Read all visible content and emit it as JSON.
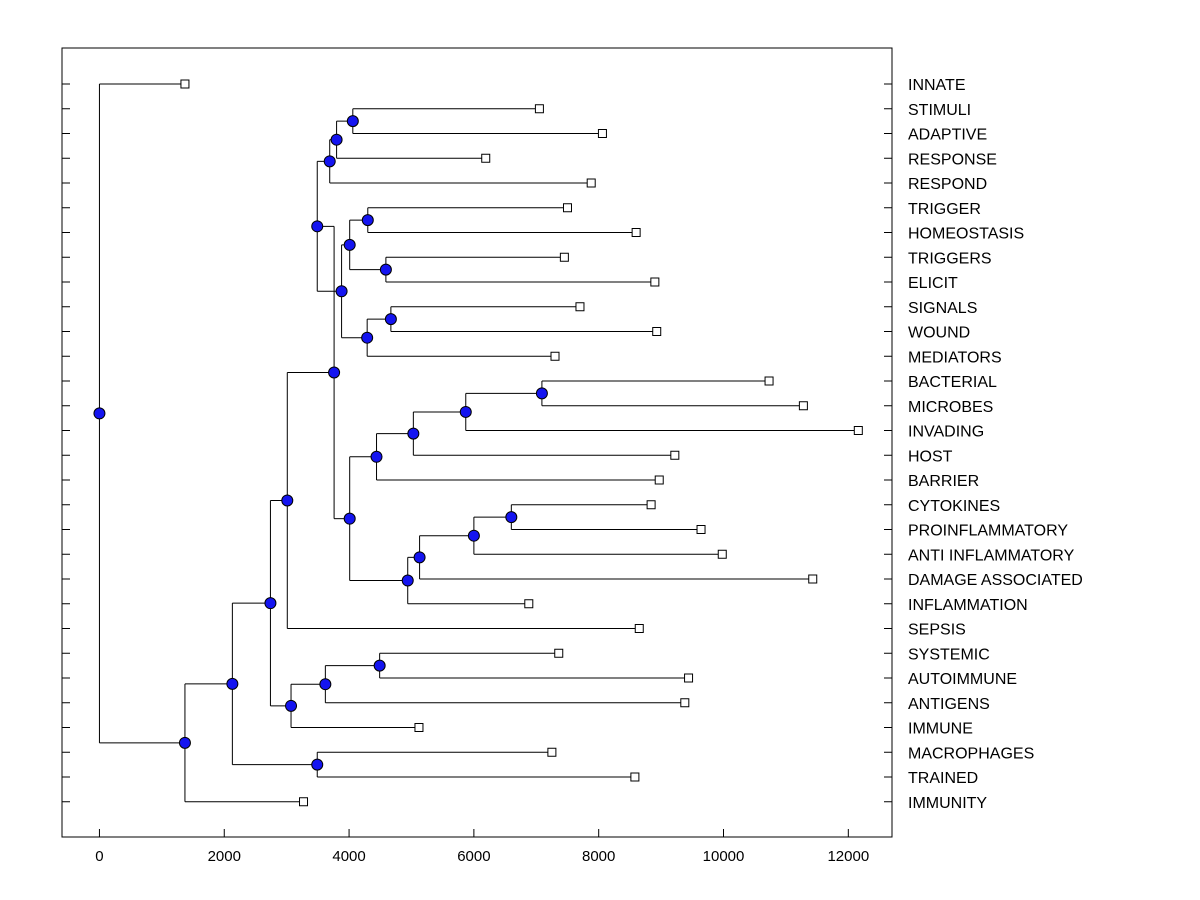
{
  "chart_data": {
    "type": "dendrogram",
    "title": "",
    "xlabel": "",
    "ylabel": "",
    "xlim": [
      -600,
      12700
    ],
    "xticks": [
      0,
      2000,
      4000,
      6000,
      8000,
      10000,
      12000
    ],
    "xtick_labels": [
      "0",
      "2000",
      "4000",
      "6000",
      "8000",
      "10000",
      "12000"
    ],
    "leaves": [
      {
        "label": "INNATE",
        "x": 1370
      },
      {
        "label": "STIMULI",
        "x": 7050
      },
      {
        "label": "ADAPTIVE",
        "x": 8060
      },
      {
        "label": "RESPONSE",
        "x": 6190
      },
      {
        "label": "RESPOND",
        "x": 7880
      },
      {
        "label": "TRIGGER",
        "x": 7500
      },
      {
        "label": "HOMEOSTASIS",
        "x": 8600
      },
      {
        "label": "TRIGGERS",
        "x": 7450
      },
      {
        "label": "ELICIT",
        "x": 8900
      },
      {
        "label": "SIGNALS",
        "x": 7700
      },
      {
        "label": "WOUND",
        "x": 8930
      },
      {
        "label": "MEDIATORS",
        "x": 7300
      },
      {
        "label": "BACTERIAL",
        "x": 10730
      },
      {
        "label": "MICROBES",
        "x": 11280
      },
      {
        "label": "INVADING",
        "x": 12160
      },
      {
        "label": "HOST",
        "x": 9220
      },
      {
        "label": "BARRIER",
        "x": 8970
      },
      {
        "label": "CYTOKINES",
        "x": 8840
      },
      {
        "label": "PROINFLAMMATORY",
        "x": 9640
      },
      {
        "label": "ANTI INFLAMMATORY",
        "x": 9980
      },
      {
        "label": "DAMAGE ASSOCIATED",
        "x": 11430
      },
      {
        "label": "INFLAMMATION",
        "x": 6880
      },
      {
        "label": "SEPSIS",
        "x": 8650
      },
      {
        "label": "SYSTEMIC",
        "x": 7360
      },
      {
        "label": "AUTOIMMUNE",
        "x": 9440
      },
      {
        "label": "ANTIGENS",
        "x": 9380
      },
      {
        "label": "IMMUNE",
        "x": 5120
      },
      {
        "label": "MACROPHAGES",
        "x": 7250
      },
      {
        "label": "TRAINED",
        "x": 8580
      },
      {
        "label": "IMMUNITY",
        "x": 3270
      }
    ],
    "merges": [
      {
        "id": "m1",
        "x": 4060,
        "children": [
          "L1",
          "L2"
        ]
      },
      {
        "id": "m2",
        "x": 3800,
        "children": [
          "m1",
          "L3"
        ]
      },
      {
        "id": "m3",
        "x": 3690,
        "children": [
          "m2",
          "L4"
        ]
      },
      {
        "id": "m4",
        "x": 4300,
        "children": [
          "L5",
          "L6"
        ]
      },
      {
        "id": "m5",
        "x": 4590,
        "children": [
          "L7",
          "L8"
        ]
      },
      {
        "id": "m6",
        "x": 4010,
        "children": [
          "m4",
          "m5"
        ]
      },
      {
        "id": "m7",
        "x": 4670,
        "children": [
          "L9",
          "L10"
        ]
      },
      {
        "id": "m8",
        "x": 4290,
        "children": [
          "m7",
          "L11"
        ]
      },
      {
        "id": "m9",
        "x": 3880,
        "children": [
          "m6",
          "m8"
        ]
      },
      {
        "id": "m10",
        "x": 3490,
        "children": [
          "m3",
          "m9"
        ]
      },
      {
        "id": "m11",
        "x": 7090,
        "children": [
          "L12",
          "L13"
        ]
      },
      {
        "id": "m12",
        "x": 5870,
        "children": [
          "m11",
          "L14"
        ]
      },
      {
        "id": "m13",
        "x": 5030,
        "children": [
          "m12",
          "L15"
        ]
      },
      {
        "id": "m14",
        "x": 4440,
        "children": [
          "m13",
          "L16"
        ]
      },
      {
        "id": "m15",
        "x": 6600,
        "children": [
          "L17",
          "L18"
        ]
      },
      {
        "id": "m16",
        "x": 6000,
        "children": [
          "m15",
          "L19"
        ]
      },
      {
        "id": "m17",
        "x": 5130,
        "children": [
          "m16",
          "L20"
        ]
      },
      {
        "id": "m18",
        "x": 4940,
        "children": [
          "m17",
          "L21"
        ]
      },
      {
        "id": "m19",
        "x": 4010,
        "children": [
          "m14",
          "m18"
        ]
      },
      {
        "id": "m20",
        "x": 3760,
        "children": [
          "m10",
          "m19"
        ]
      },
      {
        "id": "m21",
        "x": 3010,
        "children": [
          "m20",
          "L22"
        ]
      },
      {
        "id": "m22",
        "x": 4490,
        "children": [
          "L23",
          "L24"
        ]
      },
      {
        "id": "m23",
        "x": 3620,
        "children": [
          "m22",
          "L25"
        ]
      },
      {
        "id": "m24",
        "x": 3070,
        "children": [
          "m23",
          "L26"
        ]
      },
      {
        "id": "m25",
        "x": 2740,
        "children": [
          "m21",
          "m24"
        ]
      },
      {
        "id": "m26",
        "x": 3490,
        "children": [
          "L27",
          "L28"
        ]
      },
      {
        "id": "m27",
        "x": 2130,
        "children": [
          "m25",
          "m26"
        ]
      },
      {
        "id": "m28",
        "x": 1370,
        "children": [
          "m27",
          "L29"
        ]
      },
      {
        "id": "m29",
        "x": 0,
        "children": [
          "L0",
          "m28"
        ]
      }
    ],
    "colors": {
      "node_fill": "#1414f0",
      "leaf_fill": "#ffffff",
      "line": "#000000"
    },
    "grid": false
  }
}
